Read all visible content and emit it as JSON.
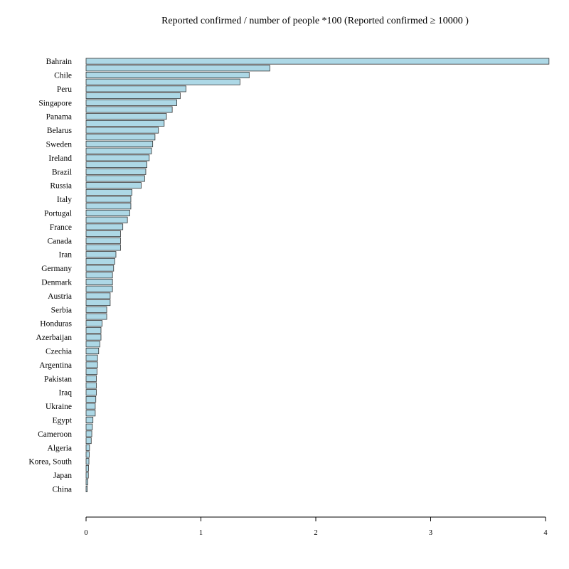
{
  "chart_data": {
    "type": "bar",
    "orientation": "horizontal",
    "title": "Reported confirmed / number of people *100 (Reported   confirmed ≥ 10000  )",
    "xlabel": "",
    "ylabel": "",
    "xlim": [
      0,
      4.03
    ],
    "x_ticks": [
      "0",
      "1",
      "2",
      "3",
      "4"
    ],
    "bar_fill": "#add8e6",
    "bar_stroke": "#333333",
    "grid": false,
    "legend": "none",
    "categories": [
      "Bahrain",
      "",
      "Chile",
      "",
      "Peru",
      "",
      "Singapore",
      "",
      "Panama",
      "",
      "Belarus",
      "",
      "Sweden",
      "",
      "Ireland",
      "",
      "Brazil",
      "",
      "Russia",
      "",
      "Italy",
      "",
      "Portugal",
      "",
      "France",
      "",
      "Canada",
      "",
      "Iran",
      "",
      "Germany",
      "",
      "Denmark",
      "",
      "Austria",
      "",
      "Serbia",
      "",
      "Honduras",
      "",
      "Azerbaijan",
      "",
      "Czechia",
      "",
      "Argentina",
      "",
      "Pakistan",
      "",
      "Iraq",
      "",
      "Ukraine",
      "",
      "Egypt",
      "",
      "Cameroon",
      "",
      "Algeria",
      "",
      "Korea, South",
      "",
      "Japan",
      "",
      "China"
    ],
    "values": [
      4.03,
      1.6,
      1.42,
      1.34,
      0.87,
      0.82,
      0.79,
      0.75,
      0.7,
      0.68,
      0.63,
      0.6,
      0.58,
      0.57,
      0.55,
      0.53,
      0.52,
      0.51,
      0.48,
      0.4,
      0.39,
      0.39,
      0.38,
      0.36,
      0.32,
      0.3,
      0.3,
      0.3,
      0.26,
      0.25,
      0.24,
      0.23,
      0.23,
      0.23,
      0.21,
      0.21,
      0.18,
      0.18,
      0.14,
      0.13,
      0.13,
      0.12,
      0.11,
      0.1,
      0.1,
      0.095,
      0.09,
      0.09,
      0.09,
      0.085,
      0.08,
      0.08,
      0.06,
      0.055,
      0.05,
      0.045,
      0.03,
      0.028,
      0.025,
      0.022,
      0.02,
      0.015,
      0.01
    ]
  }
}
